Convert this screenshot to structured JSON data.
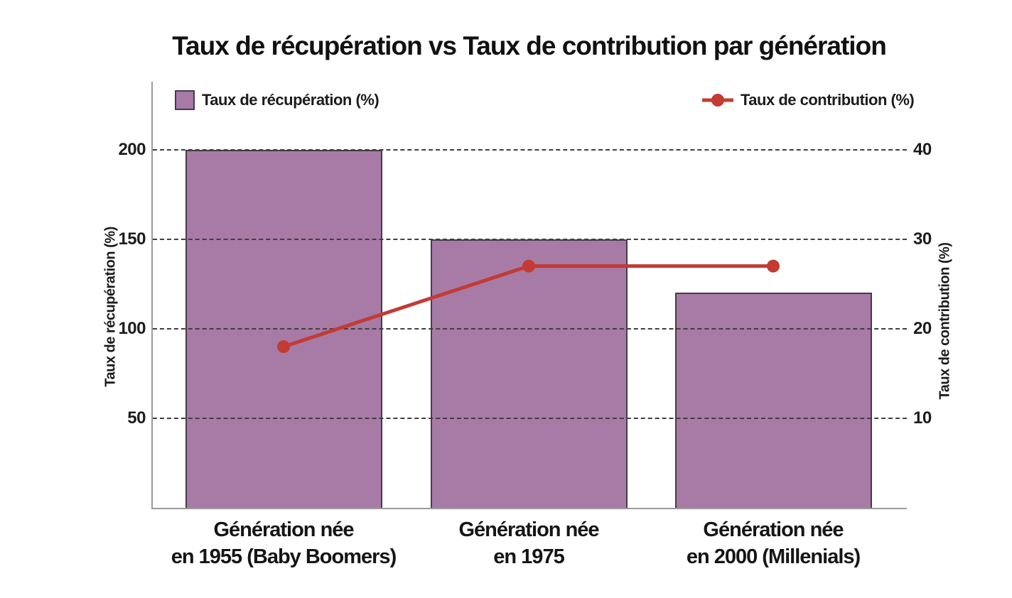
{
  "chart_data": {
    "type": "bar",
    "combo": "bar+line",
    "title": "Taux de récupération vs Taux de contribution par génération",
    "categories": [
      "Génération née en 1955 (Baby Boomers)",
      "Génération née en 1975",
      "Génération née en 2000 (Millenials)"
    ],
    "category_lines": [
      [
        "Génération née",
        "en 1955 (Baby Boomers)"
      ],
      [
        "Génération née",
        "en 1975"
      ],
      [
        "Génération née",
        "en 2000 (Millenials)"
      ]
    ],
    "series": [
      {
        "name": "Taux de récupération (%)",
        "type": "bar",
        "axis": "left",
        "color": "#a77ba6",
        "border_color": "#453c4a",
        "values": [
          200,
          150,
          120
        ]
      },
      {
        "name": "Taux de contribution (%)",
        "type": "line",
        "axis": "right",
        "color": "#c33b33",
        "values": [
          18,
          27,
          27
        ]
      }
    ],
    "left_axis": {
      "label": "Taux de récupération (%)",
      "ticks": [
        200,
        150,
        100,
        50
      ],
      "ylim": [
        0,
        238
      ]
    },
    "right_axis": {
      "label": "Taux de contribution (%)",
      "ticks": [
        40,
        30,
        20,
        10
      ],
      "ylim": [
        0,
        47.6
      ]
    },
    "grid": "horizontal dashed",
    "legend_position": "top"
  },
  "legend": {
    "bar": {
      "label": "Taux de récupération (%)",
      "swatch_color": "#a77ba6"
    },
    "line": {
      "label": "Taux de contribution (%)",
      "marker_color": "#c33b33"
    }
  },
  "colors": {
    "bar_fill": "#a77ba6",
    "bar_border": "#453c4a",
    "line_red": "#c33b33",
    "gridline": "#3f3f3f",
    "axis_line": "#9b9b9b",
    "text": "#1c1c1c",
    "background": "#ffffff"
  }
}
